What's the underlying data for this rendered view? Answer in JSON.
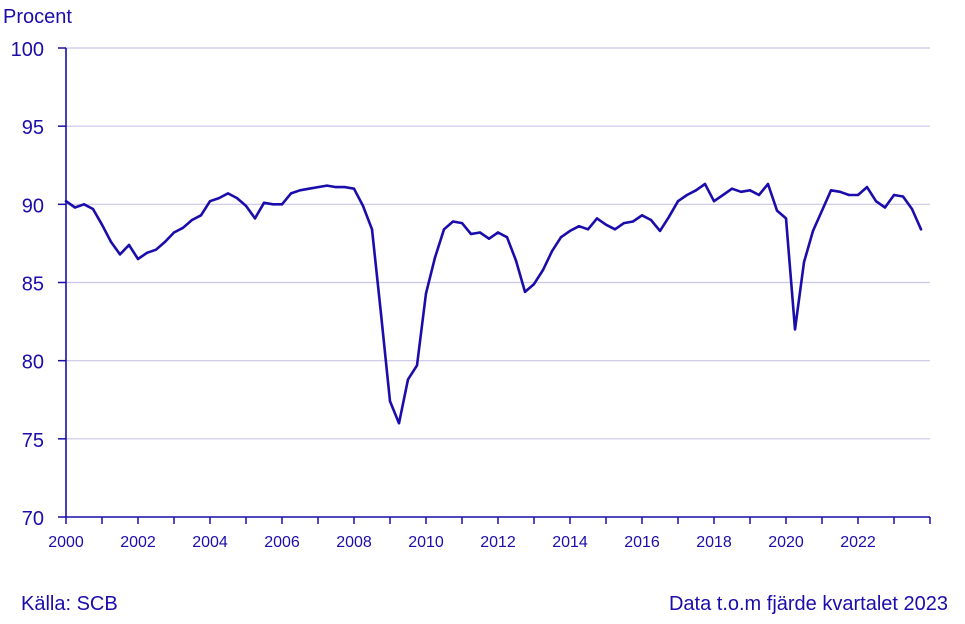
{
  "chart_data": {
    "type": "line",
    "ylabel": "Procent",
    "ylim": [
      70,
      100
    ],
    "yticks": [
      70,
      75,
      80,
      85,
      90,
      95,
      100
    ],
    "xlim": [
      2000,
      2023.75
    ],
    "xticks": [
      "2000",
      "2002",
      "2004",
      "2006",
      "2008",
      "2010",
      "2012",
      "2014",
      "2016",
      "2018",
      "2020",
      "2022"
    ],
    "grid": true,
    "colors": {
      "line": "#1a0dab",
      "grid": "#c9c6e8",
      "axis": "#1a0dab"
    },
    "series": [
      {
        "x": [
          2000.0,
          2000.25,
          2000.5,
          2000.75,
          2001.0,
          2001.25,
          2001.5,
          2001.75,
          2002.0,
          2002.25,
          2002.5,
          2002.75,
          2003.0,
          2003.25,
          2003.5,
          2003.75,
          2004.0,
          2004.25,
          2004.5,
          2004.75,
          2005.0,
          2005.25,
          2005.5,
          2005.75,
          2006.0,
          2006.25,
          2006.5,
          2006.75,
          2007.0,
          2007.25,
          2007.5,
          2007.75,
          2008.0,
          2008.25,
          2008.5,
          2008.75,
          2009.0,
          2009.25,
          2009.5,
          2009.75,
          2010.0,
          2010.25,
          2010.5,
          2010.75,
          2011.0,
          2011.25,
          2011.5,
          2011.75,
          2012.0,
          2012.25,
          2012.5,
          2012.75,
          2013.0,
          2013.25,
          2013.5,
          2013.75,
          2014.0,
          2014.25,
          2014.5,
          2014.75,
          2015.0,
          2015.25,
          2015.5,
          2015.75,
          2016.0,
          2016.25,
          2016.5,
          2016.75,
          2017.0,
          2017.25,
          2017.5,
          2017.75,
          2018.0,
          2018.25,
          2018.5,
          2018.75,
          2019.0,
          2019.25,
          2019.5,
          2019.75,
          2020.0,
          2020.25,
          2020.5,
          2020.75,
          2021.0,
          2021.25,
          2021.5,
          2021.75,
          2022.0,
          2022.25,
          2022.5,
          2022.75,
          2023.0,
          2023.25,
          2023.5,
          2023.75
        ],
        "values": [
          90.2,
          89.8,
          90.0,
          89.7,
          88.7,
          87.6,
          86.8,
          87.4,
          86.5,
          86.9,
          87.1,
          87.6,
          88.2,
          88.5,
          89.0,
          89.3,
          90.2,
          90.4,
          90.7,
          90.4,
          89.9,
          89.1,
          90.1,
          90.0,
          90.0,
          90.7,
          90.9,
          91.0,
          91.1,
          91.2,
          91.1,
          91.1,
          91.0,
          89.9,
          88.4,
          83.0,
          77.4,
          76.0,
          78.8,
          79.7,
          84.3,
          86.6,
          88.4,
          88.9,
          88.8,
          88.1,
          88.2,
          87.8,
          88.2,
          87.9,
          86.4,
          84.4,
          84.9,
          85.8,
          87.0,
          87.9,
          88.3,
          88.6,
          88.4,
          89.1,
          88.7,
          88.4,
          88.8,
          88.9,
          89.3,
          89.0,
          88.3,
          89.2,
          90.2,
          90.6,
          90.9,
          91.3,
          90.2,
          90.6,
          91.0,
          90.8,
          90.9,
          90.6,
          91.3,
          89.6,
          89.1,
          82.0,
          86.3,
          88.3,
          89.6,
          90.9,
          90.8,
          90.6,
          90.6,
          91.1,
          90.2,
          89.8,
          90.6,
          90.5,
          89.7,
          88.4
        ]
      }
    ]
  },
  "footer": {
    "source": "Källa: SCB",
    "note": "Data t.o.m fjärde kvartalet 2023"
  }
}
